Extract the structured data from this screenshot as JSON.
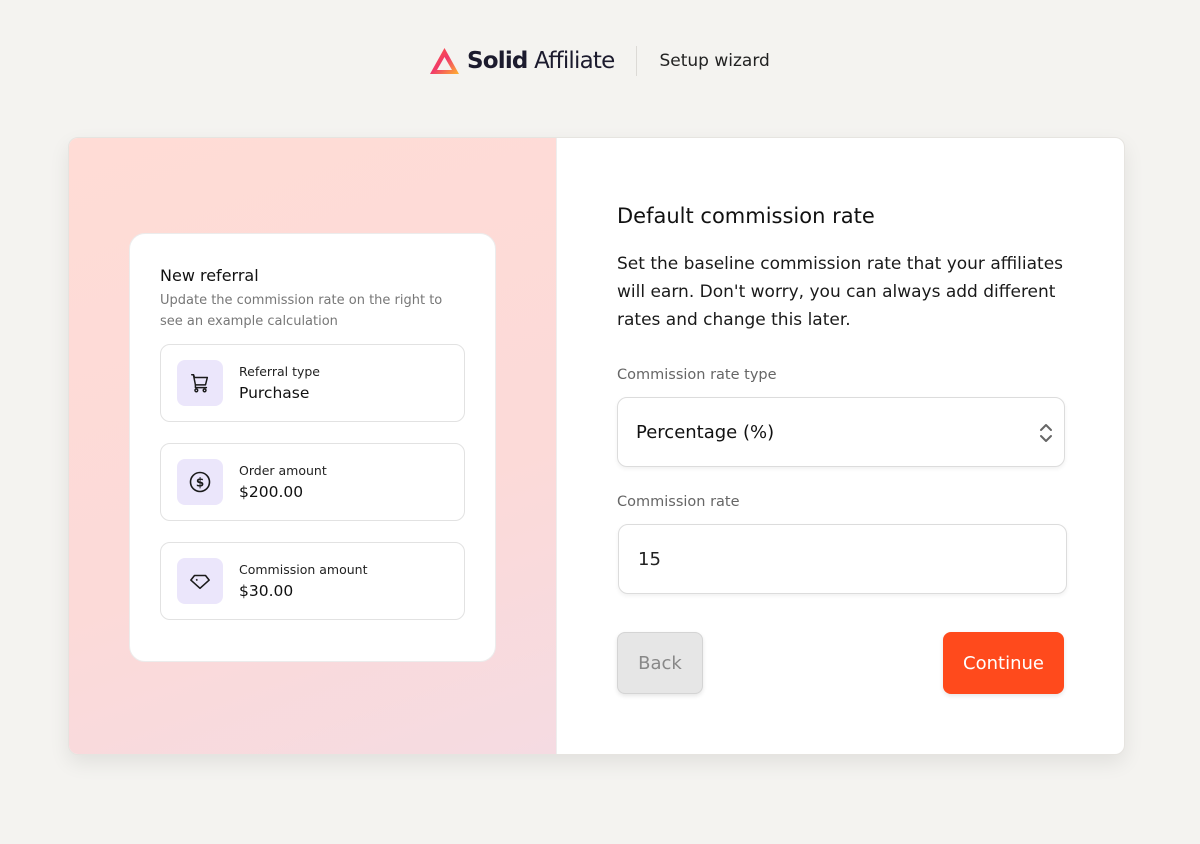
{
  "header": {
    "brand_bold": "Solid",
    "brand_rest": "Affiliate",
    "subtitle": "Setup wizard"
  },
  "preview": {
    "title": "New referral",
    "subtitle": "Update the commission rate on the right to see an example calculation",
    "items": [
      {
        "icon": "cart-icon",
        "label": "Referral type",
        "value": "Purchase"
      },
      {
        "icon": "dollar-circle-icon",
        "label": "Order amount",
        "value": "$200.00"
      },
      {
        "icon": "diamond-icon",
        "label": "Commission amount",
        "value": "$30.00"
      }
    ]
  },
  "form": {
    "title": "Default commission rate",
    "description": "Set the baseline commission rate that your affiliates will earn. Don't worry, you can always add different rates and change this later.",
    "rate_type_label": "Commission rate type",
    "rate_type_value": "Percentage (%)",
    "rate_label": "Commission rate",
    "rate_value": "15",
    "back_label": "Back",
    "continue_label": "Continue"
  },
  "colors": {
    "accent": "#ff4a1c",
    "icon_bg": "#ebe6fb"
  }
}
